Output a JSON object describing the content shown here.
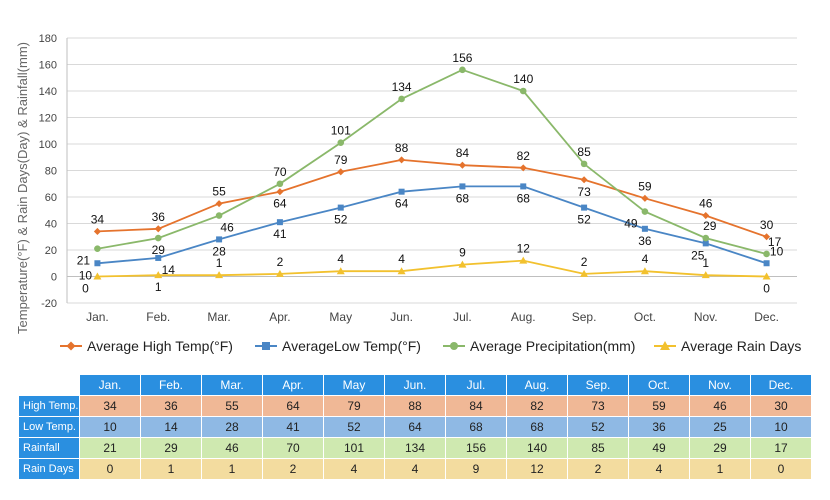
{
  "chart_data": {
    "type": "line",
    "categories": [
      "Jan.",
      "Feb.",
      "Mar.",
      "Apr.",
      "May",
      "Jun.",
      "Jul.",
      "Aug.",
      "Sep.",
      "Oct.",
      "Nov.",
      "Dec."
    ],
    "ylabel": "Temperature(°F) & Rain Days(Day) & Rainfall(mm)",
    "ylim": [
      -20,
      180
    ],
    "yticks": [
      -20,
      0,
      20,
      40,
      60,
      80,
      100,
      120,
      140,
      160,
      180
    ],
    "grid": true,
    "legend_position": "bottom",
    "series": [
      {
        "name": "Average High Temp(°F)",
        "color": "#e5732d",
        "marker": "diamond",
        "values": [
          34,
          36,
          55,
          64,
          79,
          88,
          84,
          82,
          73,
          59,
          46,
          30
        ]
      },
      {
        "name": "AverageLow Temp(°F)",
        "color": "#4a86c5",
        "marker": "square",
        "values": [
          10,
          14,
          28,
          41,
          52,
          64,
          68,
          68,
          52,
          36,
          25,
          10
        ]
      },
      {
        "name": "Average Precipitation(mm)",
        "color": "#8ab86a",
        "marker": "circle",
        "values": [
          21,
          29,
          46,
          70,
          101,
          134,
          156,
          140,
          85,
          49,
          29,
          17
        ]
      },
      {
        "name": "Average Rain Days",
        "color": "#f2c12e",
        "marker": "triangle",
        "values": [
          0,
          1,
          1,
          2,
          4,
          4,
          9,
          12,
          2,
          4,
          1,
          0
        ]
      }
    ]
  },
  "table": {
    "months": [
      "Jan.",
      "Feb.",
      "Mar.",
      "Apr.",
      "May",
      "Jun.",
      "Jul.",
      "Aug.",
      "Sep.",
      "Oct.",
      "Nov.",
      "Dec."
    ],
    "rows": [
      {
        "label": "High Temp.",
        "values": [
          "34",
          "36",
          "55",
          "64",
          "79",
          "88",
          "84",
          "82",
          "73",
          "59",
          "46",
          "30"
        ]
      },
      {
        "label": "Low Temp.",
        "values": [
          "10",
          "14",
          "28",
          "41",
          "52",
          "64",
          "68",
          "68",
          "52",
          "36",
          "25",
          "10"
        ]
      },
      {
        "label": "Rainfall",
        "values": [
          "21",
          "29",
          "46",
          "70",
          "101",
          "134",
          "156",
          "140",
          "85",
          "49",
          "29",
          "17"
        ]
      },
      {
        "label": "Rain Days",
        "values": [
          "0",
          "1",
          "1",
          "2",
          "4",
          "4",
          "9",
          "12",
          "2",
          "4",
          "1",
          "0"
        ]
      }
    ]
  }
}
